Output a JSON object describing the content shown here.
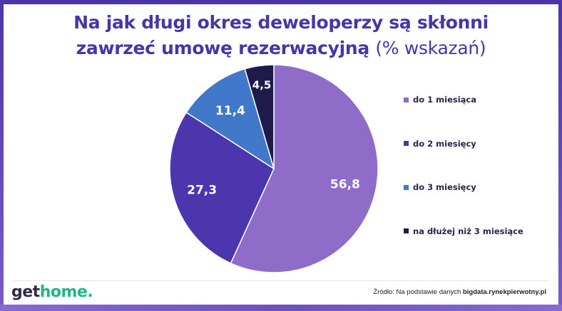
{
  "title": {
    "bold": "Na jak długi okres deweloperzy są skłonni zawrzeć umowę rezerwacyjną",
    "light": "(% wskazań)"
  },
  "chart_data": {
    "type": "pie",
    "title": "Na jak długi okres deweloperzy są skłonni zawrzeć umowę rezerwacyjną (% wskazań)",
    "slices": [
      {
        "label": "do 1 miesiąca",
        "value": 56.8,
        "display": "56,8",
        "color": "#8f6cc7"
      },
      {
        "label": "do 2 miesięcy",
        "value": 27.3,
        "display": "27,3",
        "color": "#4b36ad"
      },
      {
        "label": "do 3 miesięcy",
        "value": 11.4,
        "display": "11,4",
        "color": "#4278c9"
      },
      {
        "label": "na dłużej niż 3 miesiące",
        "value": 4.5,
        "display": "4,5",
        "color": "#1e1a4a"
      }
    ],
    "legend_position": "right"
  },
  "logo": {
    "get": "get",
    "home": "home",
    "dot": "."
  },
  "source": {
    "prefix": "Źródło: Na podstawie danych ",
    "site": "bigdata.rynekpierwotny.pl"
  }
}
